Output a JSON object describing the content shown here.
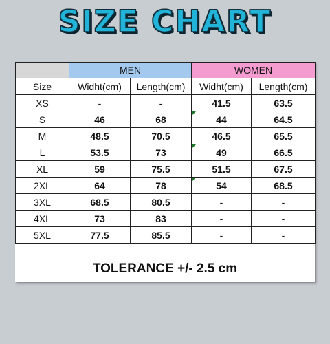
{
  "title": "SIZE CHART",
  "colors": {
    "men_header": "#a3c9ee",
    "women_header": "#f49ccf",
    "title_fill": "#21b3d8"
  },
  "groups": {
    "men": "MEN",
    "women": "WOMEN"
  },
  "columns": [
    "Size",
    "Widht(cm)",
    "Length(cm)",
    "Widht(cm)",
    "Length(cm)"
  ],
  "rows": [
    {
      "size": "XS",
      "men_width": "-",
      "men_length": "-",
      "women_width": "41.5",
      "women_length": "63.5"
    },
    {
      "size": "S",
      "men_width": "46",
      "men_length": "68",
      "women_width": "44",
      "women_length": "64.5"
    },
    {
      "size": "M",
      "men_width": "48.5",
      "men_length": "70.5",
      "women_width": "46.5",
      "women_length": "65.5"
    },
    {
      "size": "L",
      "men_width": "53.5",
      "men_length": "73",
      "women_width": "49",
      "women_length": "66.5"
    },
    {
      "size": "XL",
      "men_width": "59",
      "men_length": "75.5",
      "women_width": "51.5",
      "women_length": "67.5"
    },
    {
      "size": "2XL",
      "men_width": "64",
      "men_length": "78",
      "women_width": "54",
      "women_length": "68.5"
    },
    {
      "size": "3XL",
      "men_width": "68.5",
      "men_length": "80.5",
      "women_width": "-",
      "women_length": "-"
    },
    {
      "size": "4XL",
      "men_width": "73",
      "men_length": "83",
      "women_width": "-",
      "women_length": "-"
    },
    {
      "size": "5XL",
      "men_width": "77.5",
      "men_length": "85.5",
      "women_width": "-",
      "women_length": "-"
    }
  ],
  "tolerance": "TOLERANCE +/- 2.5 cm"
}
